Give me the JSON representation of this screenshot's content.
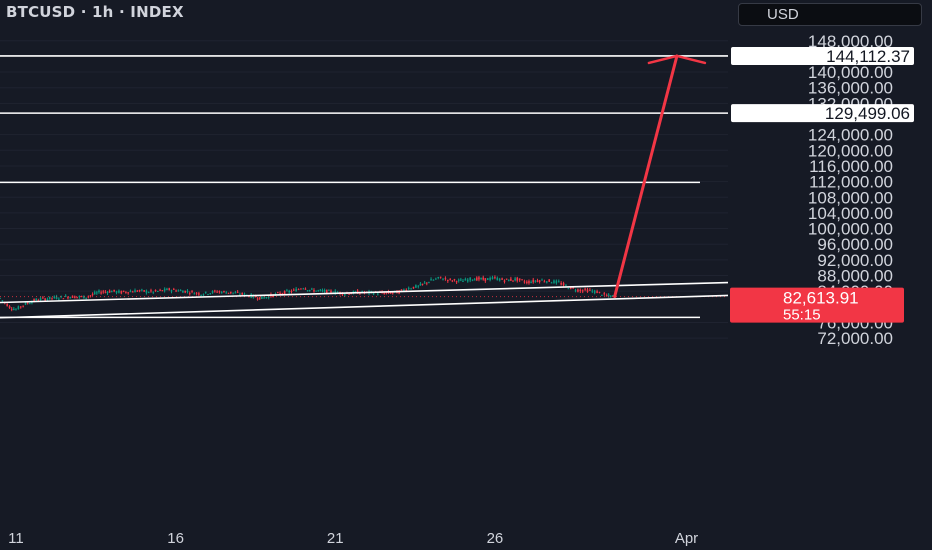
{
  "header": {
    "symbol_title": "BTCUSD · 1h · INDEX",
    "currency_label": "USD"
  },
  "chart_data": {
    "type": "line",
    "title": "BTCUSD · 1h · INDEX",
    "ylim": [
      70000,
      150000
    ],
    "y_ticks": [
      {
        "value": 148000,
        "label": "148,000.00"
      },
      {
        "value": 140000,
        "label": "140,000.00"
      },
      {
        "value": 136000,
        "label": "136,000.00"
      },
      {
        "value": 132000,
        "label": "132,000.00"
      },
      {
        "value": 124000,
        "label": "124,000.00"
      },
      {
        "value": 120000,
        "label": "120,000.00"
      },
      {
        "value": 116000,
        "label": "116,000.00"
      },
      {
        "value": 112000,
        "label": "112,000.00"
      },
      {
        "value": 108000,
        "label": "108,000.00"
      },
      {
        "value": 104000,
        "label": "104,000.00"
      },
      {
        "value": 100000,
        "label": "100,000.00"
      },
      {
        "value": 96000,
        "label": "96,000.00"
      },
      {
        "value": 92000,
        "label": "92,000.00"
      },
      {
        "value": 88000,
        "label": "88,000.00"
      },
      {
        "value": 84000,
        "label": "84,000.00"
      },
      {
        "value": 76000,
        "label": "76,000.00"
      },
      {
        "value": 72000,
        "label": "72,000.00"
      }
    ],
    "x_ticks": [
      {
        "day": 11,
        "label": "11"
      },
      {
        "day": 16,
        "label": "16"
      },
      {
        "day": 21,
        "label": "21"
      },
      {
        "day": 26,
        "label": "26"
      },
      {
        "day": 32,
        "label": "Apr"
      }
    ],
    "x_range_days": [
      10.5,
      33.3
    ],
    "price_series": [
      [
        10.5,
        82200
      ],
      [
        10.8,
        80000
      ],
      [
        11.0,
        79300
      ],
      [
        11.3,
        80800
      ],
      [
        11.7,
        81900
      ],
      [
        12.2,
        82300
      ],
      [
        12.7,
        82600
      ],
      [
        13.2,
        82500
      ],
      [
        13.6,
        83700
      ],
      [
        14.0,
        84000
      ],
      [
        14.3,
        83700
      ],
      [
        14.8,
        84100
      ],
      [
        15.3,
        83800
      ],
      [
        15.8,
        84400
      ],
      [
        16.3,
        84000
      ],
      [
        16.8,
        83300
      ],
      [
        17.3,
        83900
      ],
      [
        17.8,
        83600
      ],
      [
        18.3,
        82900
      ],
      [
        18.7,
        82200
      ],
      [
        19.2,
        83300
      ],
      [
        19.7,
        84100
      ],
      [
        20.0,
        85000
      ],
      [
        20.2,
        84300
      ],
      [
        20.6,
        84000
      ],
      [
        21.0,
        83800
      ],
      [
        21.3,
        83400
      ],
      [
        21.7,
        83700
      ],
      [
        22.2,
        83600
      ],
      [
        22.6,
        83500
      ],
      [
        23.0,
        83800
      ],
      [
        23.3,
        84800
      ],
      [
        23.6,
        85200
      ],
      [
        24.0,
        86700
      ],
      [
        24.3,
        87400
      ],
      [
        24.6,
        86800
      ],
      [
        25.0,
        86600
      ],
      [
        25.3,
        87200
      ],
      [
        25.7,
        87000
      ],
      [
        26.0,
        87300
      ],
      [
        26.3,
        86800
      ],
      [
        26.7,
        87000
      ],
      [
        27.0,
        86300
      ],
      [
        27.4,
        86800
      ],
      [
        27.7,
        86600
      ],
      [
        28.0,
        86200
      ],
      [
        28.3,
        85100
      ],
      [
        28.6,
        84300
      ],
      [
        28.9,
        84200
      ],
      [
        29.2,
        83800
      ],
      [
        29.5,
        82800
      ],
      [
        29.75,
        82600
      ]
    ],
    "horizontal_lines": [
      {
        "value": 144112.37,
        "label": "144,112.37"
      },
      {
        "value": 129499.06,
        "label": "129,499.06"
      },
      {
        "value": 111800,
        "label": ""
      },
      {
        "value": 77300,
        "label": ""
      }
    ],
    "trend_lines": [
      {
        "from": [
          10.5,
          81100
        ],
        "to": [
          33.3,
          86200
        ]
      },
      {
        "from": [
          10.5,
          77200
        ],
        "to": [
          33.3,
          82900
        ]
      }
    ],
    "arrow": {
      "from": [
        29.75,
        82600
      ],
      "to": [
        31.7,
        144112.37
      ],
      "color": "#f23645"
    },
    "last_price": {
      "value": 82613.91,
      "label": "82,613.91",
      "countdown": "55:15",
      "color": "#f23645"
    },
    "colors": {
      "up": "#089981",
      "down": "#f23645",
      "background": "#161a25",
      "axis_text": "#d1d4dc"
    }
  }
}
